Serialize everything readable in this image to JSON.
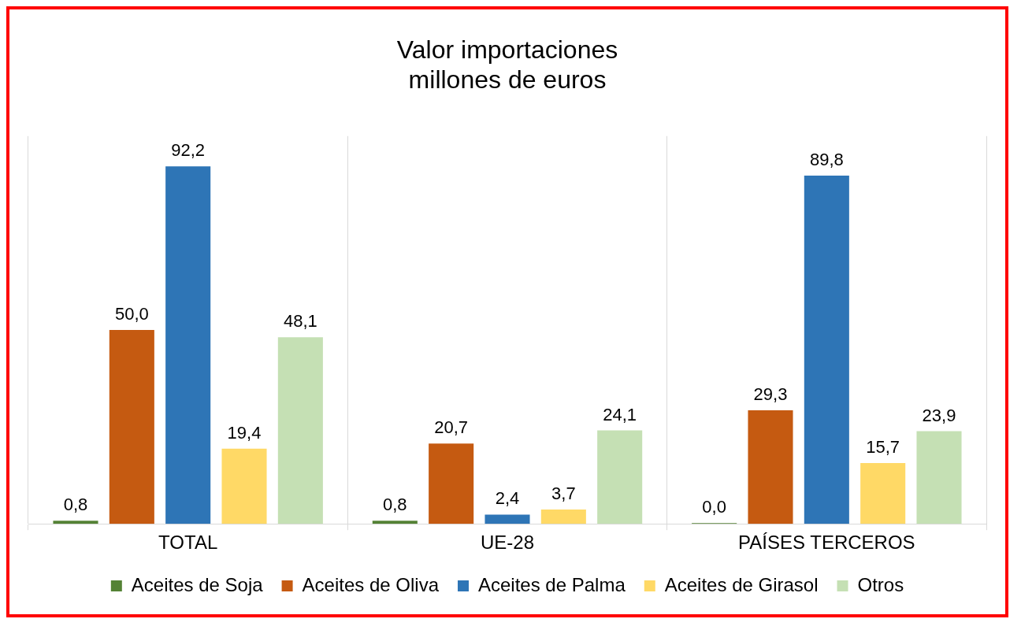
{
  "chart_data": {
    "type": "bar",
    "title": "Valor importaciones\nmillones de euros",
    "categories": [
      "TOTAL",
      "UE-28",
      "PAÍSES TERCEROS"
    ],
    "series": [
      {
        "name": "Aceites de Soja",
        "color": "#548235",
        "values": [
          0.8,
          0.8,
          0.0
        ],
        "value_labels": [
          "0,8",
          "0,8",
          "0,0"
        ]
      },
      {
        "name": "Aceites de Oliva",
        "color": "#c55a11",
        "values": [
          50.0,
          20.7,
          29.3
        ],
        "value_labels": [
          "50,0",
          "20,7",
          "29,3"
        ]
      },
      {
        "name": "Aceites de Palma",
        "color": "#2e75b6",
        "values": [
          92.2,
          2.4,
          89.8
        ],
        "value_labels": [
          "92,2",
          "2,4",
          "89,8"
        ]
      },
      {
        "name": "Aceites de Girasol",
        "color": "#ffd966",
        "values": [
          19.4,
          3.7,
          15.7
        ],
        "value_labels": [
          "19,4",
          "3,7",
          "15,7"
        ]
      },
      {
        "name": "Otros",
        "color": "#c5e0b4",
        "values": [
          48.1,
          24.1,
          23.9
        ],
        "value_labels": [
          "48,1",
          "24,1",
          "23,9"
        ]
      }
    ],
    "grid": "x",
    "legend": "bottom"
  }
}
